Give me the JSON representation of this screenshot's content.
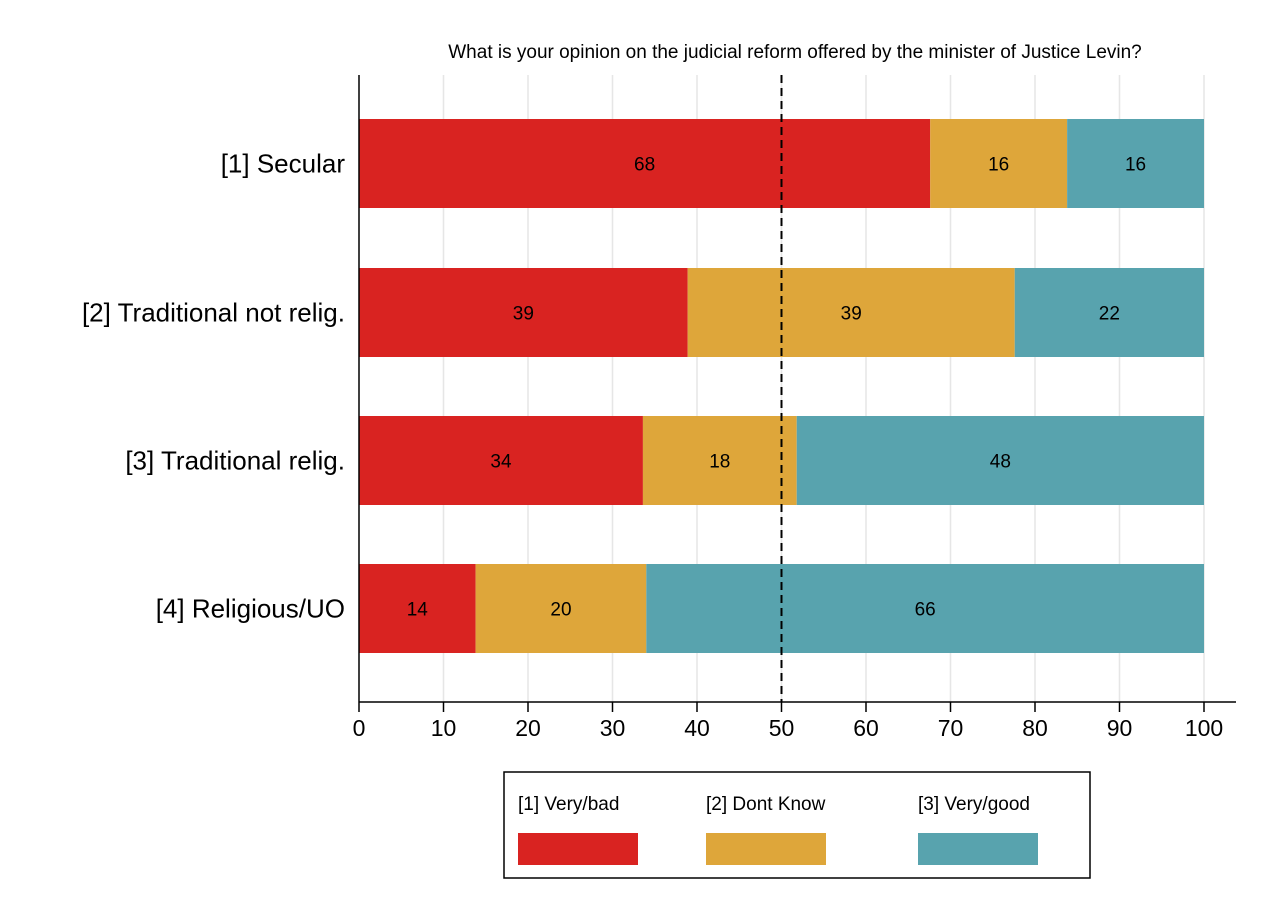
{
  "chart_data": {
    "type": "bar",
    "orientation": "horizontal",
    "stacked": true,
    "title": "What is your opinion on the judicial reform offered by the minister of Justice Levin?",
    "categories": [
      "[1] Secular",
      "[2] Traditional not relig.",
      "[3] Traditional relig.",
      "[4] Religious/UO"
    ],
    "series": [
      {
        "name": "[1] Very/bad",
        "color": "#D92321",
        "values": [
          67.6,
          38.9,
          33.6,
          13.8
        ],
        "labels": [
          "68",
          "39",
          "34",
          "14"
        ]
      },
      {
        "name": "[2] Dont Know",
        "color": "#DEA63A",
        "values": [
          16.2,
          38.7,
          18.2,
          20.2
        ],
        "labels": [
          "16",
          "39",
          "18",
          "20"
        ]
      },
      {
        "name": "[3] Very/good",
        "color": "#58A3AE",
        "values": [
          16.2,
          22.4,
          48.2,
          66.0
        ],
        "labels": [
          "16",
          "22",
          "48",
          "66"
        ]
      }
    ],
    "xlim": [
      0,
      100
    ],
    "xticks": [
      "0",
      "10",
      "20",
      "30",
      "40",
      "50",
      "60",
      "70",
      "80",
      "90",
      "100"
    ],
    "reference_line": 50,
    "grid": true,
    "legend_position": "bottom"
  }
}
